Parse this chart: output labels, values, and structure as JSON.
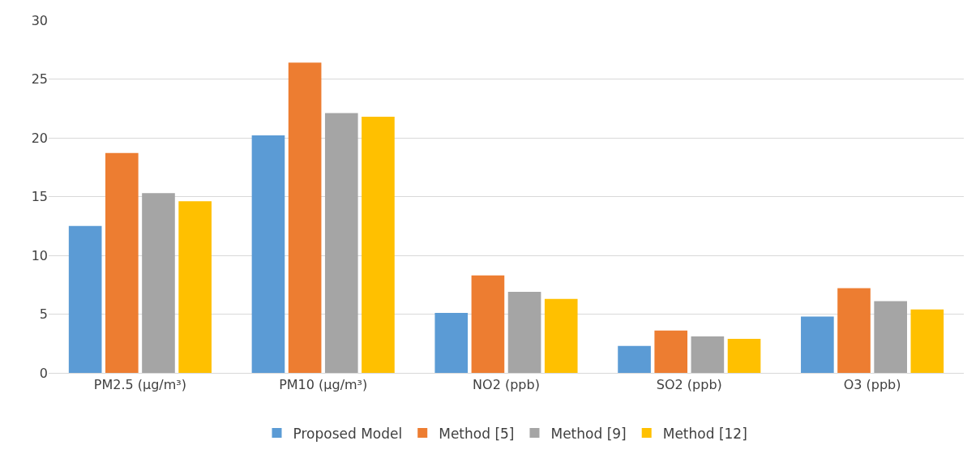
{
  "chart_data": {
    "type": "bar",
    "categories": [
      "PM2.5 (µg/m³)",
      "PM10 (µg/m³)",
      "NO2 (ppb)",
      "SO2 (ppb)",
      "O3 (ppb)"
    ],
    "series": [
      {
        "name": "Proposed Model",
        "color": "#5b9bd5",
        "values": [
          12.5,
          20.2,
          5.1,
          2.3,
          4.8
        ]
      },
      {
        "name": "Method [5]",
        "color": "#ed7d31",
        "values": [
          18.7,
          26.4,
          8.3,
          3.6,
          7.2
        ]
      },
      {
        "name": "Method [9]",
        "color": "#a5a5a5",
        "values": [
          15.3,
          22.1,
          6.9,
          3.1,
          6.1
        ]
      },
      {
        "name": "Method [12]",
        "color": "#ffc000",
        "values": [
          14.6,
          21.8,
          6.3,
          2.9,
          5.4
        ]
      }
    ],
    "ylim": [
      0,
      30
    ],
    "yticks": [
      0,
      5,
      10,
      15,
      20,
      25,
      30
    ],
    "grid": "y",
    "legend": "bottom"
  }
}
